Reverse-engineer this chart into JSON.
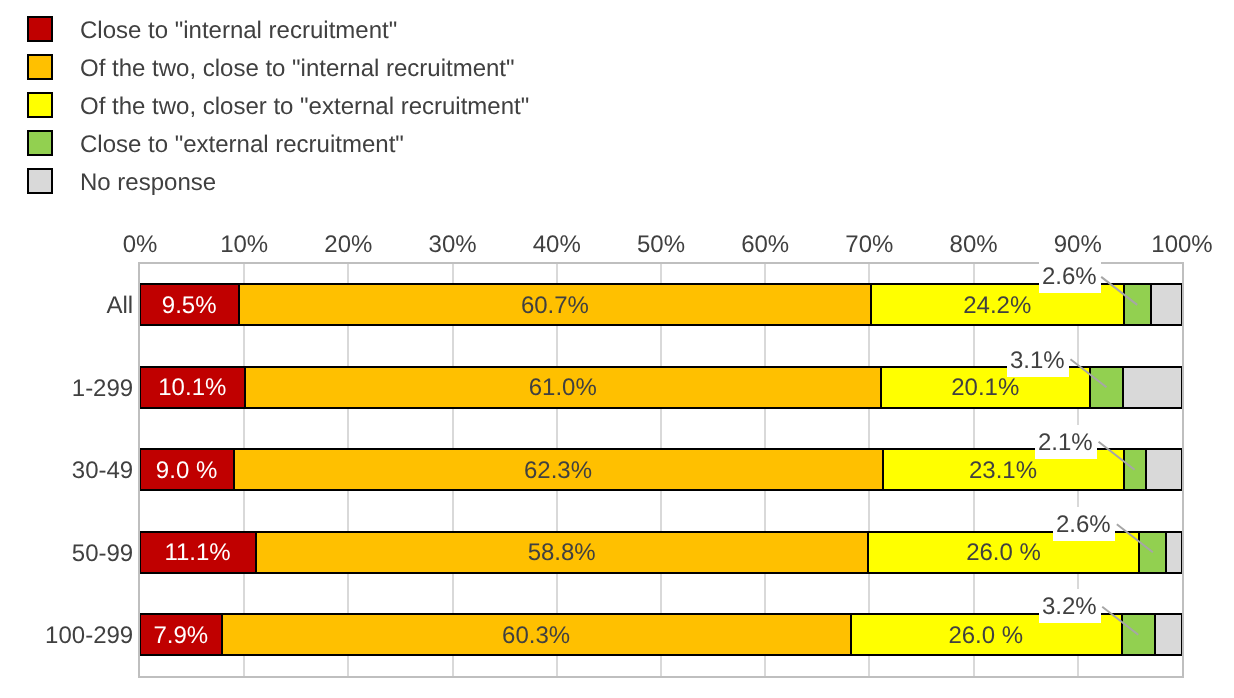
{
  "chart_data": {
    "type": "bar",
    "orientation": "horizontal",
    "stacked": true,
    "categories": [
      "All",
      "1-299",
      "30-49",
      "50-99",
      "100-299"
    ],
    "series": [
      {
        "name": "Close to \"internal recruitment\"",
        "color": "#c00000",
        "values": [
          9.5,
          10.1,
          9.0,
          11.1,
          7.9
        ],
        "value_labels": [
          "9.5%",
          "10.1%",
          "9.0 %",
          "11.1%",
          "7.9%"
        ]
      },
      {
        "name": "Of the two, close to \"internal recruitment\"",
        "color": "#ffc000",
        "values": [
          60.7,
          61.0,
          62.3,
          58.8,
          60.3
        ],
        "value_labels": [
          "60.7%",
          "61.0%",
          "62.3%",
          "58.8%",
          "60.3%"
        ]
      },
      {
        "name": "Of the two, closer to \"external recruitment\"",
        "color": "#ffff00",
        "values": [
          24.2,
          20.1,
          23.1,
          26.0,
          26.0
        ],
        "value_labels": [
          "24.2%",
          "20.1%",
          "23.1%",
          "26.0 %",
          "26.0 %"
        ]
      },
      {
        "name": "Close to \"external recruitment\"",
        "color": "#92d050",
        "values": [
          2.6,
          3.1,
          2.1,
          2.6,
          3.2
        ],
        "value_labels": [
          "2.6%",
          "3.1%",
          "2.1%",
          "2.6%",
          "3.2%"
        ]
      },
      {
        "name": "No response",
        "color": "#d9d9d9",
        "values": [
          3.0,
          5.7,
          3.5,
          1.5,
          2.6
        ]
      }
    ],
    "xlim": [
      0,
      100
    ],
    "xticks": [
      {
        "value": 0,
        "label": "0%"
      },
      {
        "value": 10,
        "label": "10%"
      },
      {
        "value": 20,
        "label": "20%"
      },
      {
        "value": 30,
        "label": "30%"
      },
      {
        "value": 40,
        "label": "40%"
      },
      {
        "value": 50,
        "label": "50%"
      },
      {
        "value": 60,
        "label": "60%"
      },
      {
        "value": 70,
        "label": "70%"
      },
      {
        "value": 80,
        "label": "80%"
      },
      {
        "value": 90,
        "label": "90%"
      },
      {
        "value": 100,
        "label": "100%"
      }
    ],
    "grid": "x",
    "legend": "top"
  }
}
